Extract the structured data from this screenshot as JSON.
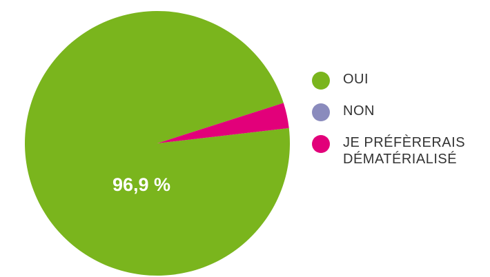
{
  "chart_data": {
    "type": "pie",
    "categories": [
      "OUI",
      "NON",
      "JE PRÉFÈRERAIS DÉMATÉRIALISÉ"
    ],
    "values": [
      96.9,
      0,
      3.1
    ],
    "value_labels": [
      "96,9 %",
      null,
      null
    ],
    "colors": [
      "#7ab51d",
      "#8a8bbd",
      "#e2007a"
    ]
  }
}
